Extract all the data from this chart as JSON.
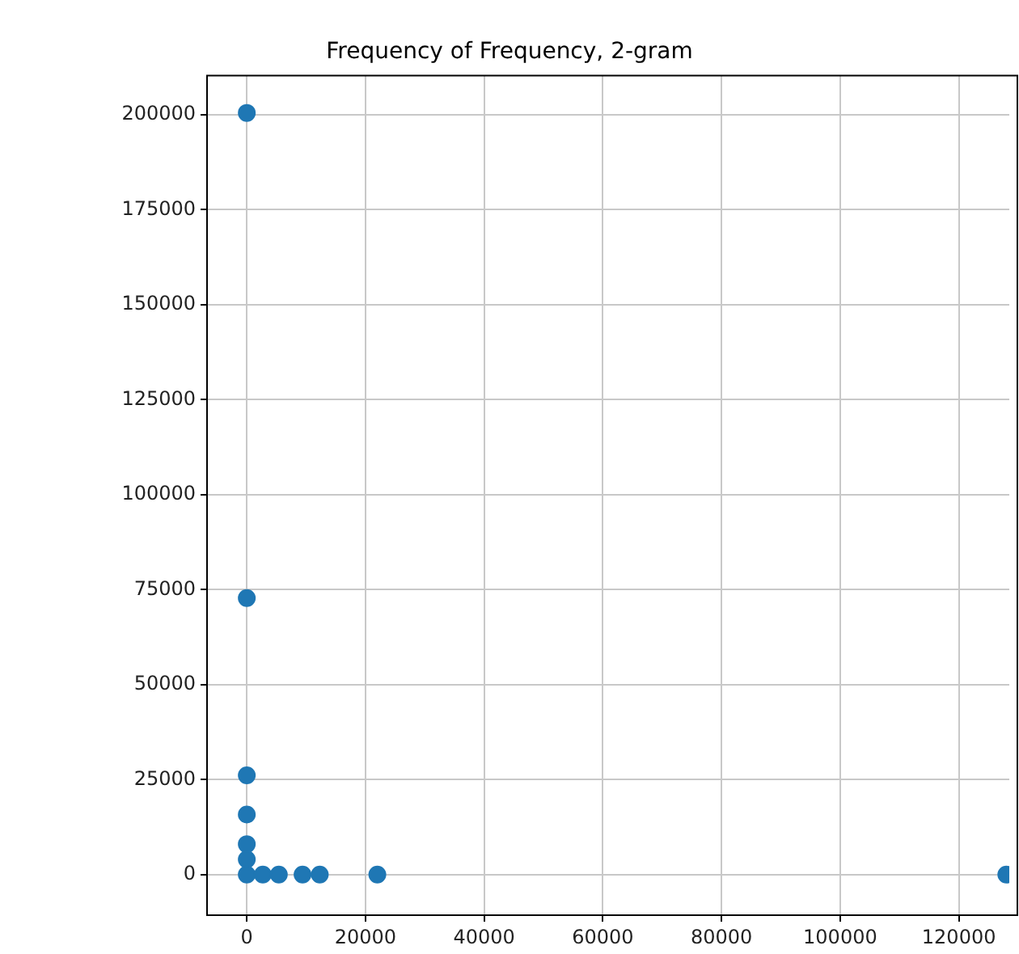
{
  "chart_data": {
    "type": "scatter",
    "title": "Frequency of Frequency, 2-gram",
    "x": [
      0,
      0,
      0,
      0,
      0,
      0,
      0,
      2700,
      5400,
      9400,
      12300,
      22000,
      128000
    ],
    "values": [
      200500,
      72800,
      26100,
      15800,
      8000,
      4000,
      0,
      0,
      0,
      0,
      0,
      0,
      0
    ],
    "color": "#1f77b4",
    "marker": "circle",
    "grid": true,
    "xlim": [
      -6700,
      128500
    ],
    "xticks": [
      0,
      20000,
      40000,
      60000,
      80000,
      100000,
      120000
    ],
    "ylim": [
      -10700,
      210300
    ],
    "yticks": [
      0,
      25000,
      50000,
      75000,
      100000,
      125000,
      150000,
      175000,
      200000
    ]
  }
}
